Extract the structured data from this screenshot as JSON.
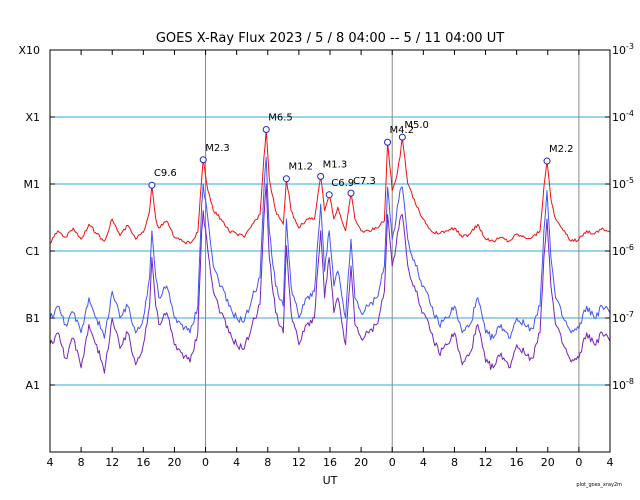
{
  "chart_data": {
    "type": "line",
    "title": "GOES X-Ray Flux   2023 /  5 /  8   04:00 --  5 / 11   04:00   UT",
    "xlabel": "UT",
    "credit": "plot_goes_xray2m",
    "x_range_hours": [
      0,
      72
    ],
    "day_boundaries_hours": [
      20,
      44,
      68
    ],
    "x_tick_labels": [
      "4",
      "8",
      "12",
      "16",
      "20",
      "0",
      "4",
      "8",
      "12",
      "16",
      "20",
      "0",
      "4",
      "8",
      "12",
      "16",
      "20",
      "0",
      "4"
    ],
    "y_scale": "log",
    "y_range": [
      1e-09,
      0.001
    ],
    "left_axis_labels": [
      "X10",
      "X1",
      "M1",
      "C1",
      "B1",
      "A1"
    ],
    "right_axis_labels": [
      {
        "base": "10",
        "exp": "-3"
      },
      {
        "base": "10",
        "exp": "-4"
      },
      {
        "base": "10",
        "exp": "-5"
      },
      {
        "base": "10",
        "exp": "-6"
      },
      {
        "base": "10",
        "exp": "-7"
      },
      {
        "base": "10",
        "exp": "-8"
      }
    ],
    "colors": {
      "long_channel": "#ee1111",
      "short_channel_a": "#4455ee",
      "short_channel_b": "#7722bb",
      "grid": "#33aadd",
      "day_line": "#888888",
      "marker": "#2222cc"
    },
    "flares": [
      {
        "label": "C9.6",
        "t": 13.1,
        "flux": 9.6e-06
      },
      {
        "label": "M2.3",
        "t": 19.7,
        "flux": 2.3e-05
      },
      {
        "label": "M6.5",
        "t": 27.8,
        "flux": 6.5e-05
      },
      {
        "label": "M1.2",
        "t": 30.4,
        "flux": 1.2e-05
      },
      {
        "label": "M1.3",
        "t": 34.8,
        "flux": 1.3e-05
      },
      {
        "label": "C6.9",
        "t": 35.9,
        "flux": 6.9e-06
      },
      {
        "label": "C7.3",
        "t": 38.7,
        "flux": 7.3e-06
      },
      {
        "label": "M4.2",
        "t": 43.4,
        "flux": 4.2e-05
      },
      {
        "label": "M5.0",
        "t": 45.3,
        "flux": 5e-05
      },
      {
        "label": "M2.2",
        "t": 63.9,
        "flux": 2.2e-05
      }
    ],
    "series": [
      {
        "channel": "long",
        "t": [
          0,
          1,
          2,
          3,
          4,
          5,
          6,
          7,
          8,
          9,
          10,
          11,
          12,
          12.8,
          13.1,
          13.6,
          14,
          15,
          16,
          17,
          18,
          19,
          19.5,
          19.7,
          20.3,
          21,
          22,
          23,
          24,
          25,
          26,
          27,
          27.5,
          27.8,
          28.2,
          29,
          30,
          30.4,
          31,
          32,
          33,
          34,
          34.8,
          35.3,
          35.9,
          36.5,
          37,
          38,
          38.7,
          39.2,
          40,
          41,
          42,
          43,
          43.4,
          44,
          44.5,
          45,
          45.3,
          46,
          47,
          48,
          49,
          50,
          51,
          52,
          53,
          54,
          55,
          56,
          57,
          58,
          59,
          60,
          61,
          62,
          63,
          63.5,
          63.9,
          64.4,
          65,
          66,
          67,
          68,
          69,
          70,
          71,
          72
        ],
        "flux": [
          1.3e-06,
          2e-06,
          1.6e-06,
          2.2e-06,
          1.5e-06,
          2.5e-06,
          1.8e-06,
          1.4e-06,
          3e-06,
          1.7e-06,
          2.4e-06,
          1.5e-06,
          1.9e-06,
          4e-06,
          9.6e-06,
          3e-06,
          2.2e-06,
          2.8e-06,
          1.6e-06,
          1.4e-06,
          1.3e-06,
          1.9e-06,
          1.2e-05,
          2.3e-05,
          8e-06,
          4e-06,
          3e-06,
          2e-06,
          1.8e-06,
          1.6e-06,
          2.5e-06,
          3.5e-06,
          2.5e-05,
          6.5e-05,
          1.2e-05,
          4e-06,
          2.5e-06,
          1.2e-05,
          4e-06,
          2.2e-06,
          3e-06,
          3e-06,
          1.3e-05,
          4e-06,
          6.9e-06,
          3e-06,
          4.5e-06,
          2e-06,
          7.3e-06,
          3e-06,
          2e-06,
          2e-06,
          2.2e-06,
          2.8e-06,
          4.2e-05,
          8e-06,
          1.2e-05,
          2.5e-05,
          5e-05,
          1e-05,
          5e-06,
          3e-06,
          2e-06,
          1.8e-06,
          2e-06,
          2.2e-06,
          1.6e-06,
          1.8e-06,
          2.5e-06,
          1.5e-06,
          1.4e-06,
          1.6e-06,
          1.4e-06,
          1.8e-06,
          1.6e-06,
          1.6e-06,
          2e-06,
          9e-06,
          2.2e-05,
          6e-06,
          3e-06,
          2e-06,
          1.4e-06,
          1.5e-06,
          2e-06,
          1.8e-06,
          2.2e-06,
          1.9e-06
        ]
      },
      {
        "channel": "short_a",
        "t": [
          0,
          1,
          2,
          3,
          4,
          5,
          6,
          7,
          8,
          9,
          10,
          11,
          12,
          12.8,
          13.1,
          13.6,
          14,
          15,
          16,
          17,
          18,
          19,
          19.5,
          19.7,
          20.3,
          21,
          22,
          23,
          24,
          25,
          26,
          27,
          27.5,
          27.8,
          28.2,
          29,
          30,
          30.4,
          31,
          32,
          33,
          34,
          34.8,
          35.3,
          35.9,
          36.5,
          37,
          38,
          38.7,
          39.2,
          40,
          41,
          42,
          43,
          43.4,
          44,
          44.5,
          45,
          45.3,
          46,
          47,
          48,
          49,
          50,
          51,
          52,
          53,
          54,
          55,
          56,
          57,
          58,
          59,
          60,
          61,
          62,
          63,
          63.5,
          63.9,
          64.4,
          65,
          66,
          67,
          68,
          69,
          70,
          71,
          72
        ],
        "flux": [
          1e-07,
          1.5e-07,
          8e-08,
          1.2e-07,
          6e-08,
          2e-07,
          1e-07,
          5e-08,
          2.5e-07,
          1e-07,
          1.5e-07,
          6e-08,
          1e-07,
          4e-07,
          2e-06,
          4e-07,
          2e-07,
          3e-07,
          1e-07,
          8e-08,
          6e-08,
          1.5e-07,
          5e-06,
          1e-05,
          3e-06,
          6e-07,
          3e-07,
          1.5e-07,
          1e-07,
          9e-08,
          2e-07,
          4e-07,
          8e-06,
          2.5e-05,
          2e-06,
          3e-07,
          1.5e-07,
          3e-06,
          3e-07,
          1e-07,
          2e-07,
          2.5e-07,
          5e-06,
          5e-07,
          2e-06,
          3e-07,
          5e-07,
          1e-07,
          1.5e-06,
          2e-07,
          1.2e-07,
          1.5e-07,
          2e-07,
          6e-07,
          9e-06,
          1.5e-06,
          3e-06,
          8e-06,
          9e-06,
          1.5e-06,
          6e-07,
          3e-07,
          1.5e-07,
          8e-08,
          1e-07,
          1.5e-07,
          6e-08,
          8e-08,
          2e-07,
          6e-08,
          5e-08,
          8e-08,
          5e-08,
          1e-07,
          8e-08,
          7e-08,
          1.5e-07,
          2e-06,
          8e-06,
          8e-07,
          2e-07,
          1e-07,
          6e-08,
          7e-08,
          1.5e-07,
          1e-07,
          1.5e-07,
          1.2e-07
        ]
      },
      {
        "channel": "short_b",
        "t": [
          0,
          1,
          2,
          3,
          4,
          5,
          6,
          7,
          8,
          9,
          10,
          11,
          12,
          12.8,
          13.1,
          13.6,
          14,
          15,
          16,
          17,
          18,
          19,
          19.5,
          19.7,
          20.3,
          21,
          22,
          23,
          24,
          25,
          26,
          27,
          27.5,
          27.8,
          28.2,
          29,
          30,
          30.4,
          31,
          32,
          33,
          34,
          34.8,
          35.3,
          35.9,
          36.5,
          37,
          38,
          38.7,
          39.2,
          40,
          41,
          42,
          43,
          43.4,
          44,
          44.5,
          45,
          45.3,
          46,
          47,
          48,
          49,
          50,
          51,
          52,
          53,
          54,
          55,
          56,
          57,
          58,
          59,
          60,
          61,
          62,
          63,
          63.5,
          63.9,
          64.4,
          65,
          66,
          67,
          68,
          69,
          70,
          71,
          72
        ],
        "flux": [
          4e-08,
          6e-08,
          2.5e-08,
          5e-08,
          1.8e-08,
          8e-08,
          4e-08,
          1.5e-08,
          1e-07,
          3.5e-08,
          6e-08,
          2e-08,
          4e-08,
          1.5e-07,
          8e-07,
          1.5e-07,
          8e-08,
          1.2e-07,
          4e-08,
          3e-08,
          2.2e-08,
          6e-08,
          2e-06,
          4e-06,
          1e-06,
          2.5e-07,
          1.2e-07,
          6e-08,
          4e-08,
          3.5e-08,
          8e-08,
          1.6e-07,
          3e-06,
          1e-05,
          8e-07,
          1.2e-07,
          6e-08,
          1.2e-06,
          1.2e-07,
          4e-08,
          8e-08,
          1e-07,
          2e-06,
          2e-07,
          8e-07,
          1.2e-07,
          2e-07,
          4e-08,
          6e-07,
          8e-08,
          5e-08,
          6e-08,
          8e-08,
          2.5e-07,
          3.5e-06,
          6e-07,
          1.2e-06,
          3e-06,
          3.5e-06,
          6e-07,
          2.5e-07,
          1.2e-07,
          6e-08,
          3e-08,
          4e-08,
          6e-08,
          2e-08,
          3e-08,
          8e-08,
          2.2e-08,
          1.8e-08,
          3e-08,
          1.8e-08,
          4e-08,
          3e-08,
          2.5e-08,
          6e-08,
          8e-07,
          3e-06,
          3e-07,
          8e-08,
          4e-08,
          2.2e-08,
          2.5e-08,
          6e-08,
          4e-08,
          6e-08,
          4.5e-08
        ]
      }
    ]
  }
}
